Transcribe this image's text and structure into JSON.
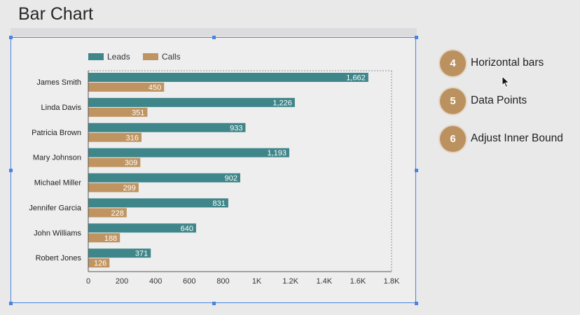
{
  "page": {
    "title": "Bar Chart"
  },
  "steps": [
    {
      "number": "4",
      "label": "Horizontal bars"
    },
    {
      "number": "5",
      "label": "Data Points"
    },
    {
      "number": "6",
      "label": "Adjust Inner Bound"
    }
  ],
  "colors": {
    "leads": "#3f868a",
    "calls": "#c09460",
    "selection": "#4a84e0",
    "badge": "#bb9160"
  },
  "chart_data": {
    "type": "bar",
    "orientation": "horizontal",
    "categories": [
      "James Smith",
      "Linda Davis",
      "Patricia Brown",
      "Mary Johnson",
      "Michael Miller",
      "Jennifer Garcia",
      "John Williams",
      "Robert Jones"
    ],
    "series": [
      {
        "name": "Leads",
        "values": [
          1662,
          1226,
          933,
          1193,
          902,
          831,
          640,
          371
        ]
      },
      {
        "name": "Calls",
        "values": [
          450,
          351,
          316,
          309,
          299,
          228,
          188,
          126
        ]
      }
    ],
    "data_labels": {
      "Leads": [
        "1,662",
        "1,226",
        "933",
        "1,193",
        "902",
        "831",
        "640",
        "371"
      ],
      "Calls": [
        "450",
        "351",
        "316",
        "309",
        "299",
        "228",
        "188",
        "126"
      ]
    },
    "x_ticks": [
      "0",
      "200",
      "400",
      "600",
      "800",
      "1K",
      "1.2K",
      "1.4K",
      "1.6K",
      "1.8K"
    ],
    "x_tick_values": [
      0,
      200,
      400,
      600,
      800,
      1000,
      1200,
      1400,
      1600,
      1800
    ],
    "xlim": [
      0,
      1800
    ],
    "legend_position": "top-left",
    "grid": false
  }
}
